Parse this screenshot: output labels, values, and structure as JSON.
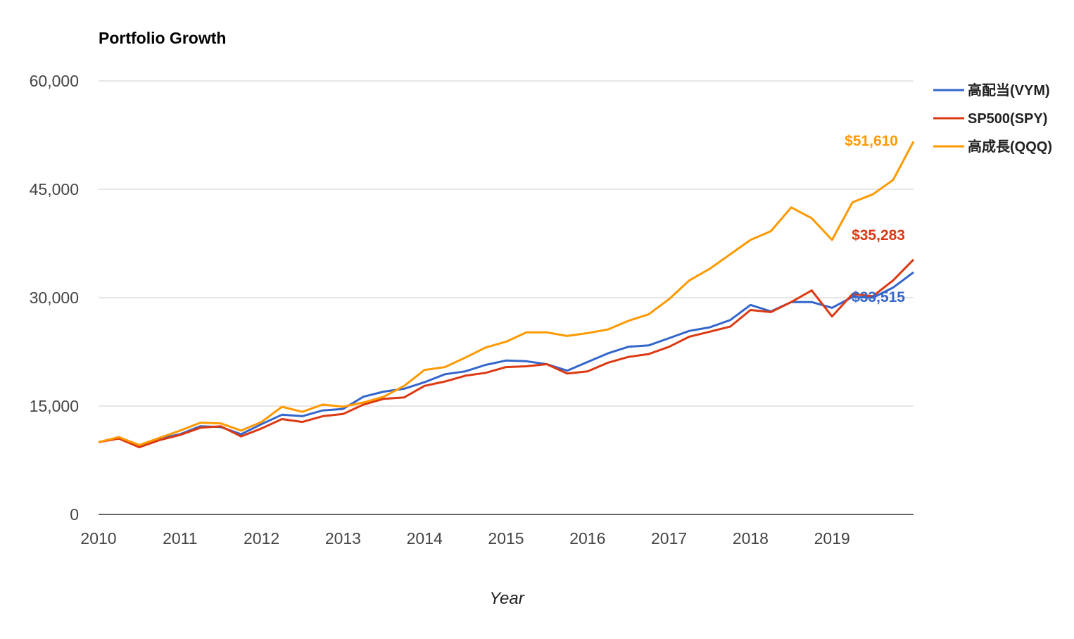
{
  "chart_data": {
    "type": "line",
    "title": "Portfolio Growth",
    "xlabel": "Year",
    "ylabel": "",
    "ylim": [
      0,
      60000
    ],
    "xlim": [
      2010,
      2020
    ],
    "yticks": [
      "0",
      "15,000",
      "30,000",
      "45,000",
      "60,000"
    ],
    "xticks": [
      "2010",
      "2011",
      "2012",
      "2013",
      "2014",
      "2015",
      "2016",
      "2017",
      "2018",
      "2019"
    ],
    "grid": true,
    "legend_position": "right",
    "series": [
      {
        "name": "高配当(VYM)",
        "color": "#3366cc",
        "end_label": "$33,515",
        "points": [
          [
            2010.0,
            10000
          ],
          [
            2010.25,
            10600
          ],
          [
            2010.5,
            9400
          ],
          [
            2010.75,
            10500
          ],
          [
            2011.0,
            11100
          ],
          [
            2011.25,
            12200
          ],
          [
            2011.5,
            12100
          ],
          [
            2011.75,
            11100
          ],
          [
            2012.0,
            12500
          ],
          [
            2012.25,
            13800
          ],
          [
            2012.5,
            13600
          ],
          [
            2012.75,
            14400
          ],
          [
            2013.0,
            14600
          ],
          [
            2013.25,
            16300
          ],
          [
            2013.5,
            17000
          ],
          [
            2013.75,
            17400
          ],
          [
            2014.0,
            18300
          ],
          [
            2014.25,
            19400
          ],
          [
            2014.5,
            19800
          ],
          [
            2014.75,
            20700
          ],
          [
            2015.0,
            21300
          ],
          [
            2015.25,
            21200
          ],
          [
            2015.5,
            20800
          ],
          [
            2015.75,
            19900
          ],
          [
            2016.0,
            21100
          ],
          [
            2016.25,
            22300
          ],
          [
            2016.5,
            23200
          ],
          [
            2016.75,
            23400
          ],
          [
            2017.0,
            24400
          ],
          [
            2017.25,
            25400
          ],
          [
            2017.5,
            25900
          ],
          [
            2017.75,
            26900
          ],
          [
            2018.0,
            29000
          ],
          [
            2018.25,
            28100
          ],
          [
            2018.5,
            29400
          ],
          [
            2018.75,
            29400
          ],
          [
            2019.0,
            28600
          ],
          [
            2019.25,
            30100
          ],
          [
            2019.5,
            30000
          ],
          [
            2019.75,
            31400
          ],
          [
            2020.0,
            33515
          ]
        ]
      },
      {
        "name": "SP500(SPY)",
        "color": "#dc3912",
        "end_label": "$35,283",
        "points": [
          [
            2010.0,
            10000
          ],
          [
            2010.25,
            10500
          ],
          [
            2010.5,
            9300
          ],
          [
            2010.75,
            10300
          ],
          [
            2011.0,
            11000
          ],
          [
            2011.25,
            12000
          ],
          [
            2011.5,
            12200
          ],
          [
            2011.75,
            10800
          ],
          [
            2012.0,
            11900
          ],
          [
            2012.25,
            13200
          ],
          [
            2012.5,
            12800
          ],
          [
            2012.75,
            13600
          ],
          [
            2013.0,
            13900
          ],
          [
            2013.25,
            15200
          ],
          [
            2013.5,
            16000
          ],
          [
            2013.75,
            16200
          ],
          [
            2014.0,
            17800
          ],
          [
            2014.25,
            18400
          ],
          [
            2014.5,
            19200
          ],
          [
            2014.75,
            19600
          ],
          [
            2015.0,
            20400
          ],
          [
            2015.25,
            20500
          ],
          [
            2015.5,
            20800
          ],
          [
            2015.75,
            19500
          ],
          [
            2016.0,
            19800
          ],
          [
            2016.25,
            21000
          ],
          [
            2016.5,
            21800
          ],
          [
            2016.75,
            22200
          ],
          [
            2017.0,
            23200
          ],
          [
            2017.25,
            24600
          ],
          [
            2017.5,
            25300
          ],
          [
            2017.75,
            26000
          ],
          [
            2018.0,
            28300
          ],
          [
            2018.25,
            28000
          ],
          [
            2018.5,
            29400
          ],
          [
            2018.75,
            31000
          ],
          [
            2019.0,
            27400
          ],
          [
            2019.25,
            30500
          ],
          [
            2019.5,
            30200
          ],
          [
            2019.75,
            32400
          ],
          [
            2020.0,
            35283
          ]
        ]
      },
      {
        "name": "高成長(QQQ)",
        "color": "#ff9900",
        "end_label": "$51,610",
        "points": [
          [
            2010.0,
            10000
          ],
          [
            2010.25,
            10700
          ],
          [
            2010.5,
            9600
          ],
          [
            2010.75,
            10600
          ],
          [
            2011.0,
            11600
          ],
          [
            2011.25,
            12700
          ],
          [
            2011.5,
            12600
          ],
          [
            2011.75,
            11600
          ],
          [
            2012.0,
            12800
          ],
          [
            2012.25,
            14900
          ],
          [
            2012.5,
            14200
          ],
          [
            2012.75,
            15200
          ],
          [
            2013.0,
            14900
          ],
          [
            2013.25,
            15500
          ],
          [
            2013.5,
            16300
          ],
          [
            2013.75,
            17800
          ],
          [
            2014.0,
            20000
          ],
          [
            2014.25,
            20400
          ],
          [
            2014.5,
            21700
          ],
          [
            2014.75,
            23100
          ],
          [
            2015.0,
            23900
          ],
          [
            2015.25,
            25200
          ],
          [
            2015.5,
            25200
          ],
          [
            2015.75,
            24700
          ],
          [
            2016.0,
            25100
          ],
          [
            2016.25,
            25600
          ],
          [
            2016.5,
            26800
          ],
          [
            2016.75,
            27700
          ],
          [
            2017.0,
            29800
          ],
          [
            2017.25,
            32400
          ],
          [
            2017.5,
            34000
          ],
          [
            2017.75,
            36000
          ],
          [
            2018.0,
            38000
          ],
          [
            2018.25,
            39200
          ],
          [
            2018.5,
            42500
          ],
          [
            2018.75,
            41000
          ],
          [
            2019.0,
            38000
          ],
          [
            2019.25,
            43200
          ],
          [
            2019.5,
            44300
          ],
          [
            2019.75,
            46300
          ],
          [
            2020.0,
            51610
          ]
        ]
      }
    ]
  }
}
